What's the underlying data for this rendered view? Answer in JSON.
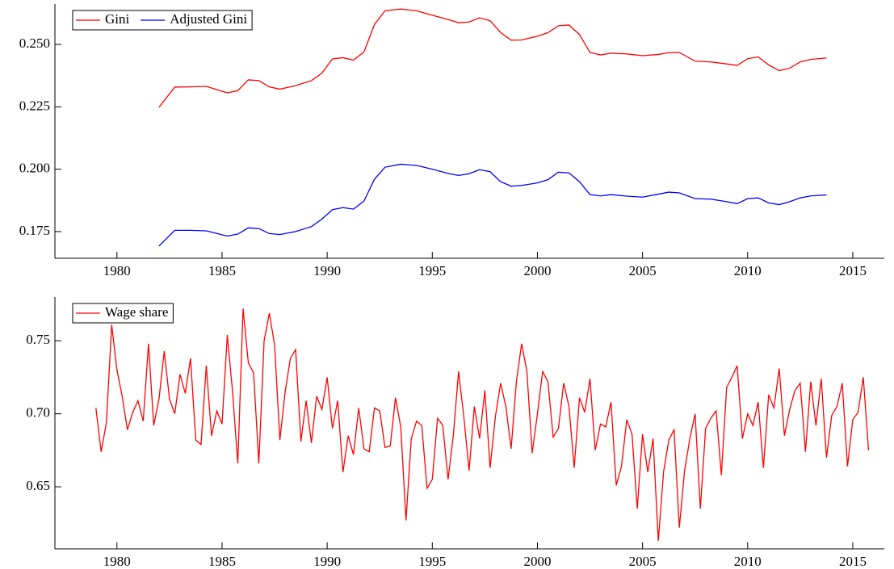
{
  "chart_data": [
    {
      "type": "line",
      "legend": "upper left",
      "grid": false,
      "xlim": [
        1977.05,
        2016.5
      ],
      "ylim": [
        0.1643,
        0.2662
      ],
      "xticks": [
        1980,
        1985,
        1990,
        1995,
        2000,
        2005,
        2010,
        2015
      ],
      "yticks": [
        {
          "value": 0.25,
          "label": "0.250"
        },
        0.225,
        {
          "value": 0.2,
          "label": "0.200"
        },
        0.175
      ],
      "x": [
        1982,
        1982.75,
        1983.5,
        1984.25,
        1985.25,
        1985.75,
        1986.25,
        1986.75,
        1987.25,
        1987.75,
        1988.5,
        1989.25,
        1989.75,
        1990.25,
        1990.75,
        1991.25,
        1991.75,
        1992.25,
        1992.75,
        1993.5,
        1994.25,
        1995,
        1995.75,
        1996.25,
        1996.75,
        1997.25,
        1997.75,
        1998.25,
        1998.75,
        1999.25,
        2000,
        2000.5,
        2001,
        2001.5,
        2002,
        2002.5,
        2003,
        2003.5,
        2004.25,
        2005,
        2005.75,
        2006.25,
        2006.75,
        2007.5,
        2008.25,
        2009,
        2009.5,
        2010,
        2010.5,
        2011,
        2011.5,
        2012,
        2012.5,
        2013,
        2013.75
      ],
      "series": [
        {
          "name": "Gini",
          "color": "#ff0000",
          "values": [
            0.2248,
            0.2329,
            0.233,
            0.2332,
            0.2306,
            0.2315,
            0.2358,
            0.2355,
            0.233,
            0.2321,
            0.2335,
            0.2355,
            0.2385,
            0.2442,
            0.2447,
            0.2437,
            0.247,
            0.258,
            0.2635,
            0.2642,
            0.2635,
            0.2617,
            0.26,
            0.2587,
            0.259,
            0.2607,
            0.2595,
            0.2548,
            0.2517,
            0.2518,
            0.2533,
            0.2547,
            0.2575,
            0.2578,
            0.254,
            0.2468,
            0.2458,
            0.2465,
            0.2462,
            0.2455,
            0.246,
            0.2467,
            0.2468,
            0.2433,
            0.243,
            0.2422,
            0.2416,
            0.2443,
            0.245,
            0.2418,
            0.2395,
            0.2405,
            0.243,
            0.244,
            0.2446
          ]
        },
        {
          "name": "Adjusted Gini",
          "color": "#0000ff",
          "values": [
            0.1692,
            0.1755,
            0.1755,
            0.1753,
            0.1732,
            0.174,
            0.1765,
            0.1762,
            0.1742,
            0.1738,
            0.175,
            0.177,
            0.18,
            0.1838,
            0.1846,
            0.184,
            0.1872,
            0.196,
            0.2008,
            0.202,
            0.2015,
            0.2,
            0.1983,
            0.1975,
            0.1982,
            0.1998,
            0.199,
            0.195,
            0.1932,
            0.1935,
            0.1945,
            0.1958,
            0.1988,
            0.1985,
            0.195,
            0.1898,
            0.1893,
            0.1898,
            0.1892,
            0.1888,
            0.19,
            0.1908,
            0.1905,
            0.1882,
            0.188,
            0.187,
            0.1862,
            0.1882,
            0.1885,
            0.1865,
            0.1858,
            0.187,
            0.1885,
            0.1893,
            0.1897
          ]
        }
      ]
    },
    {
      "type": "line",
      "legend": "upper left",
      "grid": false,
      "xlim": [
        1977.05,
        2016.5
      ],
      "ylim": [
        0.6075,
        0.78
      ],
      "xticks": [
        1980,
        1985,
        1990,
        1995,
        2000,
        2005,
        2010,
        2015
      ],
      "yticks": [
        0.75,
        {
          "value": 0.7,
          "label": "0.70"
        },
        0.65
      ],
      "x": [
        1979,
        1979.25,
        1979.5,
        1979.75,
        1980,
        1980.25,
        1980.5,
        1980.75,
        1981,
        1981.25,
        1981.5,
        1981.75,
        1982,
        1982.25,
        1982.5,
        1982.75,
        1983,
        1983.25,
        1983.5,
        1983.75,
        1984,
        1984.25,
        1984.5,
        1984.75,
        1985,
        1985.25,
        1985.5,
        1985.75,
        1986,
        1986.25,
        1986.5,
        1986.75,
        1987,
        1987.25,
        1987.5,
        1987.75,
        1988,
        1988.25,
        1988.5,
        1988.75,
        1989,
        1989.25,
        1989.5,
        1989.75,
        1990,
        1990.25,
        1990.5,
        1990.75,
        1991,
        1991.25,
        1991.5,
        1991.75,
        1992,
        1992.25,
        1992.5,
        1992.75,
        1993,
        1993.25,
        1993.5,
        1993.75,
        1994,
        1994.25,
        1994.5,
        1994.75,
        1995,
        1995.25,
        1995.5,
        1995.75,
        1996,
        1996.25,
        1996.5,
        1996.75,
        1997,
        1997.25,
        1997.5,
        1997.75,
        1998,
        1998.25,
        1998.5,
        1998.75,
        1999,
        1999.25,
        1999.5,
        1999.75,
        2000,
        2000.25,
        2000.5,
        2000.75,
        2001,
        2001.25,
        2001.5,
        2001.75,
        2002,
        2002.25,
        2002.5,
        2002.75,
        2003,
        2003.25,
        2003.5,
        2003.75,
        2004,
        2004.25,
        2004.5,
        2004.75,
        2005,
        2005.25,
        2005.5,
        2005.75,
        2006,
        2006.25,
        2006.5,
        2006.75,
        2007,
        2007.25,
        2007.5,
        2007.75,
        2008,
        2008.25,
        2008.5,
        2008.75,
        2009,
        2009.25,
        2009.5,
        2009.75,
        2010,
        2010.25,
        2010.5,
        2010.75,
        2011,
        2011.25,
        2011.5,
        2011.75,
        2012,
        2012.25,
        2012.5,
        2012.75,
        2013,
        2013.25,
        2013.5,
        2013.75,
        2014,
        2014.25,
        2014.5,
        2014.75,
        2015,
        2015.25,
        2015.5,
        2015.75
      ],
      "series": [
        {
          "name": "Wage share",
          "color": "#ff0000",
          "values": [
            0.704,
            0.674,
            0.694,
            0.761,
            0.73,
            0.712,
            0.689,
            0.701,
            0.709,
            0.695,
            0.748,
            0.692,
            0.71,
            0.743,
            0.71,
            0.7,
            0.727,
            0.714,
            0.738,
            0.682,
            0.679,
            0.733,
            0.685,
            0.702,
            0.693,
            0.754,
            0.715,
            0.666,
            0.772,
            0.735,
            0.728,
            0.666,
            0.75,
            0.769,
            0.747,
            0.682,
            0.715,
            0.738,
            0.744,
            0.681,
            0.709,
            0.68,
            0.712,
            0.703,
            0.725,
            0.69,
            0.709,
            0.66,
            0.685,
            0.672,
            0.704,
            0.676,
            0.674,
            0.704,
            0.702,
            0.677,
            0.678,
            0.711,
            0.691,
            0.627,
            0.683,
            0.695,
            0.692,
            0.649,
            0.655,
            0.697,
            0.692,
            0.655,
            0.685,
            0.729,
            0.698,
            0.661,
            0.705,
            0.683,
            0.716,
            0.663,
            0.698,
            0.721,
            0.705,
            0.676,
            0.722,
            0.748,
            0.729,
            0.673,
            0.7,
            0.729,
            0.722,
            0.684,
            0.69,
            0.721,
            0.705,
            0.663,
            0.711,
            0.701,
            0.724,
            0.675,
            0.693,
            0.691,
            0.708,
            0.651,
            0.664,
            0.696,
            0.686,
            0.635,
            0.686,
            0.66,
            0.683,
            0.613,
            0.66,
            0.682,
            0.689,
            0.622,
            0.661,
            0.683,
            0.7,
            0.635,
            0.69,
            0.697,
            0.702,
            0.658,
            0.718,
            0.725,
            0.733,
            0.683,
            0.7,
            0.692,
            0.708,
            0.663,
            0.713,
            0.704,
            0.731,
            0.685,
            0.703,
            0.716,
            0.721,
            0.674,
            0.722,
            0.692,
            0.724,
            0.67,
            0.699,
            0.705,
            0.721,
            0.664,
            0.696,
            0.701,
            0.725,
            0.675
          ]
        }
      ]
    }
  ]
}
